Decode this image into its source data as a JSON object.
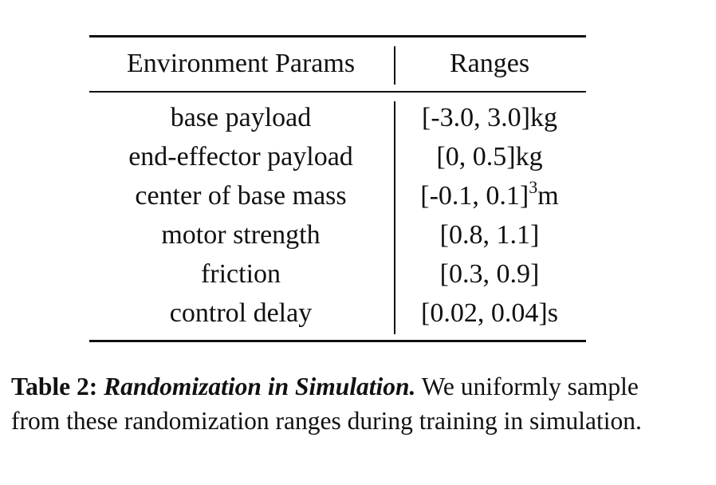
{
  "table": {
    "header": [
      "Environment Params",
      "Ranges"
    ],
    "rows": [
      [
        "base payload",
        "[-3.0, 3.0]kg"
      ],
      [
        "end-effector payload",
        "[0, 0.5]kg"
      ],
      [
        "center of base mass",
        {
          "text": "[-0.1, 0.1]",
          "sup": "3",
          "unit": "m"
        }
      ],
      [
        "motor strength",
        "[0.8, 1.1]"
      ],
      [
        "friction",
        "[0.3, 0.9]"
      ],
      [
        "control delay",
        "[0.02, 0.04]s"
      ]
    ]
  },
  "caption": {
    "label": "Table 2:",
    "title": "Randomization in Simulation.",
    "text": "We uniformly sample from these randomization ranges during training in simulation."
  }
}
